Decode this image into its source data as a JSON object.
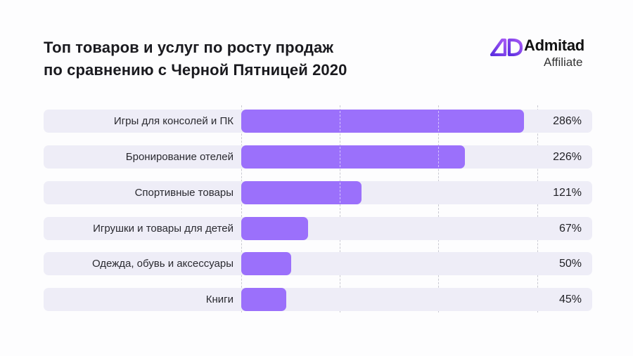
{
  "header": {
    "title_line1": "Топ товаров и услуг по росту продаж",
    "title_line2": "по сравнению с Черной Пятницей 2020"
  },
  "logo": {
    "icon": "admitad-ad-logo-icon",
    "brand": "Admitad",
    "sub": "Affiliate",
    "color": "#7b3fe4"
  },
  "colors": {
    "bar": "#9b70fb",
    "row_background": "#eeedf7",
    "text": "#1d1d22"
  },
  "rows": [
    {
      "label": "Игры для консолей и ПК",
      "value": 286,
      "value_label": "286%"
    },
    {
      "label": "Бронирование отелей",
      "value": 226,
      "value_label": "226%"
    },
    {
      "label": "Спортивные товары",
      "value": 121,
      "value_label": "121%"
    },
    {
      "label": "Игрушки и товары для детей",
      "value": 67,
      "value_label": "67%"
    },
    {
      "label": "Одежда, обувь и аксессуары",
      "value": 50,
      "value_label": "50%"
    },
    {
      "label": "Книги",
      "value": 45,
      "value_label": "45%"
    }
  ],
  "chart_data": {
    "type": "bar",
    "orientation": "horizontal",
    "title": "Топ товаров и услуг по росту продаж по сравнению с Черной Пятницей 2020",
    "categories": [
      "Игры для консолей и ПК",
      "Бронирование отелей",
      "Спортивные товары",
      "Игрушки и товары для детей",
      "Одежда, обувь и аксессуары",
      "Книги"
    ],
    "values": [
      286,
      226,
      121,
      67,
      50,
      45
    ],
    "value_labels": [
      "286%",
      "226%",
      "121%",
      "67%",
      "50%",
      "45%"
    ],
    "unit": "%",
    "xlabel": "",
    "ylabel": "",
    "xlim": [
      0,
      300
    ],
    "gridlines": [
      0,
      100,
      200,
      300
    ],
    "grid": true,
    "legend": null
  }
}
